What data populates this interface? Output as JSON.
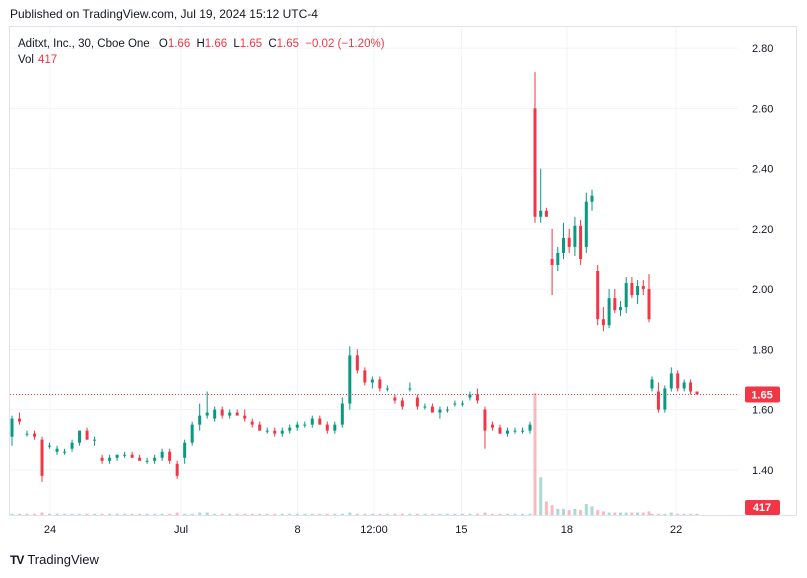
{
  "header": {
    "published": "Published on TradingView.com, Jul 19, 2024 15:12 UTC-4"
  },
  "legend": {
    "symbol": "Aditxt, Inc., 30, Cboe One",
    "o_label": "O",
    "o": "1.66",
    "h_label": "H",
    "h": "1.66",
    "l_label": "L",
    "l": "1.65",
    "c_label": "C",
    "c": "1.65",
    "change": "−0.02 (−1.20%)",
    "vol_label": "Vol",
    "vol": "417"
  },
  "footer": {
    "logo_text": "TV",
    "brand": "TradingView"
  },
  "colors": {
    "up": "#089981",
    "down": "#f23645",
    "price_line": "#f23645",
    "grid": "#f0f3fa"
  },
  "chart_data": {
    "type": "candlestick",
    "yticks": [
      "2.80",
      "2.60",
      "2.40",
      "2.20",
      "2.00",
      "1.80",
      "1.60",
      "1.40"
    ],
    "ylim": [
      1.25,
      2.87
    ],
    "xticks": [
      {
        "label": "24",
        "x": 0.055
      },
      {
        "label": "Jul",
        "x": 0.235
      },
      {
        "label": "8",
        "x": 0.395
      },
      {
        "label": "12:00",
        "x": 0.5
      },
      {
        "label": "15",
        "x": 0.62
      },
      {
        "label": "18",
        "x": 0.765
      },
      {
        "label": "22",
        "x": 0.915
      }
    ],
    "last_price": "1.65",
    "last_volume": "417",
    "candles": [
      [
        1.51,
        1.58,
        1.48,
        1.57
      ],
      [
        1.57,
        1.59,
        1.55,
        1.56
      ],
      [
        1.52,
        1.53,
        1.51,
        1.52
      ],
      [
        1.52,
        1.53,
        1.5,
        1.51
      ],
      [
        1.5,
        1.51,
        1.36,
        1.38
      ],
      [
        1.48,
        1.49,
        1.47,
        1.48
      ],
      [
        1.46,
        1.48,
        1.45,
        1.47
      ],
      [
        1.46,
        1.47,
        1.45,
        1.46
      ],
      [
        1.47,
        1.5,
        1.46,
        1.49
      ],
      [
        1.49,
        1.53,
        1.48,
        1.53
      ],
      [
        1.53,
        1.54,
        1.5,
        1.5
      ],
      [
        1.5,
        1.51,
        1.48,
        1.5
      ],
      [
        1.44,
        1.45,
        1.42,
        1.43
      ],
      [
        1.43,
        1.45,
        1.42,
        1.44
      ],
      [
        1.44,
        1.45,
        1.43,
        1.45
      ],
      [
        1.45,
        1.46,
        1.44,
        1.45
      ],
      [
        1.45,
        1.46,
        1.44,
        1.44
      ],
      [
        1.44,
        1.45,
        1.43,
        1.43
      ],
      [
        1.43,
        1.44,
        1.42,
        1.43
      ],
      [
        1.43,
        1.45,
        1.42,
        1.44
      ],
      [
        1.44,
        1.47,
        1.43,
        1.46
      ],
      [
        1.46,
        1.47,
        1.42,
        1.43
      ],
      [
        1.42,
        1.43,
        1.37,
        1.38
      ],
      [
        1.44,
        1.5,
        1.42,
        1.49
      ],
      [
        1.49,
        1.56,
        1.48,
        1.55
      ],
      [
        1.55,
        1.62,
        1.53,
        1.58
      ],
      [
        1.58,
        1.66,
        1.57,
        1.59
      ],
      [
        1.57,
        1.61,
        1.56,
        1.6
      ],
      [
        1.6,
        1.61,
        1.57,
        1.58
      ],
      [
        1.58,
        1.6,
        1.57,
        1.59
      ],
      [
        1.59,
        1.6,
        1.58,
        1.58
      ],
      [
        1.58,
        1.6,
        1.56,
        1.57
      ],
      [
        1.56,
        1.57,
        1.54,
        1.55
      ],
      [
        1.55,
        1.56,
        1.53,
        1.53
      ],
      [
        1.53,
        1.54,
        1.52,
        1.53
      ],
      [
        1.53,
        1.54,
        1.51,
        1.52
      ],
      [
        1.52,
        1.54,
        1.51,
        1.53
      ],
      [
        1.53,
        1.55,
        1.52,
        1.54
      ],
      [
        1.54,
        1.56,
        1.53,
        1.55
      ],
      [
        1.55,
        1.56,
        1.54,
        1.55
      ],
      [
        1.55,
        1.58,
        1.54,
        1.57
      ],
      [
        1.57,
        1.58,
        1.55,
        1.55
      ],
      [
        1.55,
        1.56,
        1.52,
        1.53
      ],
      [
        1.53,
        1.56,
        1.52,
        1.55
      ],
      [
        1.55,
        1.64,
        1.54,
        1.62
      ],
      [
        1.62,
        1.81,
        1.6,
        1.78
      ],
      [
        1.78,
        1.8,
        1.72,
        1.73
      ],
      [
        1.73,
        1.74,
        1.68,
        1.69
      ],
      [
        1.69,
        1.71,
        1.67,
        1.7
      ],
      [
        1.7,
        1.71,
        1.66,
        1.67
      ],
      [
        1.67,
        1.68,
        1.66,
        1.67
      ],
      [
        1.64,
        1.65,
        1.62,
        1.63
      ],
      [
        1.63,
        1.64,
        1.6,
        1.61
      ],
      [
        1.67,
        1.69,
        1.66,
        1.67
      ],
      [
        1.64,
        1.65,
        1.6,
        1.61
      ],
      [
        1.61,
        1.62,
        1.6,
        1.61
      ],
      [
        1.61,
        1.62,
        1.59,
        1.59
      ],
      [
        1.59,
        1.61,
        1.57,
        1.6
      ],
      [
        1.6,
        1.61,
        1.59,
        1.6
      ],
      [
        1.62,
        1.63,
        1.61,
        1.62
      ],
      [
        1.62,
        1.63,
        1.61,
        1.62
      ],
      [
        1.64,
        1.66,
        1.63,
        1.65
      ],
      [
        1.65,
        1.67,
        1.62,
        1.63
      ],
      [
        1.6,
        1.61,
        1.47,
        1.53
      ],
      [
        1.55,
        1.56,
        1.53,
        1.54
      ],
      [
        1.54,
        1.55,
        1.52,
        1.52
      ],
      [
        1.52,
        1.54,
        1.51,
        1.53
      ],
      [
        1.53,
        1.54,
        1.52,
        1.53
      ],
      [
        1.53,
        1.54,
        1.52,
        1.53
      ],
      [
        1.53,
        1.56,
        1.52,
        1.55
      ],
      [
        2.6,
        2.72,
        2.22,
        2.24
      ],
      [
        2.24,
        2.4,
        2.22,
        2.26
      ],
      [
        2.26,
        2.27,
        2.24,
        2.24
      ],
      [
        2.1,
        2.2,
        1.98,
        2.08
      ],
      [
        2.08,
        2.14,
        2.06,
        2.12
      ],
      [
        2.12,
        2.22,
        2.1,
        2.17
      ],
      [
        2.17,
        2.2,
        2.12,
        2.14
      ],
      [
        2.14,
        2.24,
        2.11,
        2.21
      ],
      [
        2.21,
        2.23,
        2.08,
        2.1
      ],
      [
        2.14,
        2.32,
        2.12,
        2.29
      ],
      [
        2.29,
        2.33,
        2.26,
        2.31
      ],
      [
        2.06,
        2.08,
        1.88,
        1.9
      ],
      [
        1.9,
        1.94,
        1.86,
        1.88
      ],
      [
        1.88,
        2.0,
        1.87,
        1.97
      ],
      [
        1.97,
        2.0,
        1.92,
        1.93
      ],
      [
        1.93,
        1.96,
        1.91,
        1.94
      ],
      [
        1.94,
        2.04,
        1.92,
        2.02
      ],
      [
        2.02,
        2.04,
        1.97,
        1.98
      ],
      [
        1.98,
        2.03,
        1.95,
        2.01
      ],
      [
        2.01,
        2.03,
        1.98,
        2.0
      ],
      [
        2.0,
        2.05,
        1.89,
        1.9
      ],
      [
        1.67,
        1.71,
        1.66,
        1.7
      ],
      [
        1.66,
        1.69,
        1.59,
        1.6
      ],
      [
        1.6,
        1.68,
        1.59,
        1.67
      ],
      [
        1.67,
        1.74,
        1.66,
        1.72
      ],
      [
        1.72,
        1.73,
        1.66,
        1.67
      ],
      [
        1.67,
        1.7,
        1.66,
        1.69
      ],
      [
        1.69,
        1.7,
        1.65,
        1.66
      ],
      [
        1.66,
        1.66,
        1.65,
        1.65
      ]
    ],
    "volumes": [
      1,
      1,
      1,
      1,
      2,
      1,
      1,
      1,
      1,
      1,
      1,
      1,
      1,
      1,
      1,
      1,
      1,
      1,
      1,
      1,
      1,
      1,
      2,
      1,
      1,
      2,
      2,
      1,
      1,
      1,
      1,
      1,
      1,
      1,
      1,
      1,
      1,
      1,
      1,
      1,
      1,
      1,
      1,
      1,
      1,
      2,
      1,
      1,
      1,
      1,
      1,
      1,
      1,
      1,
      1,
      1,
      1,
      1,
      1,
      1,
      1,
      1,
      1,
      2,
      1,
      1,
      1,
      1,
      1,
      1,
      100,
      31,
      11,
      8,
      5,
      5,
      4,
      5,
      4,
      9,
      7,
      4,
      3,
      2,
      2,
      2,
      2,
      2,
      2,
      2,
      3,
      1,
      1,
      1,
      2,
      1,
      1,
      1,
      1
    ]
  }
}
